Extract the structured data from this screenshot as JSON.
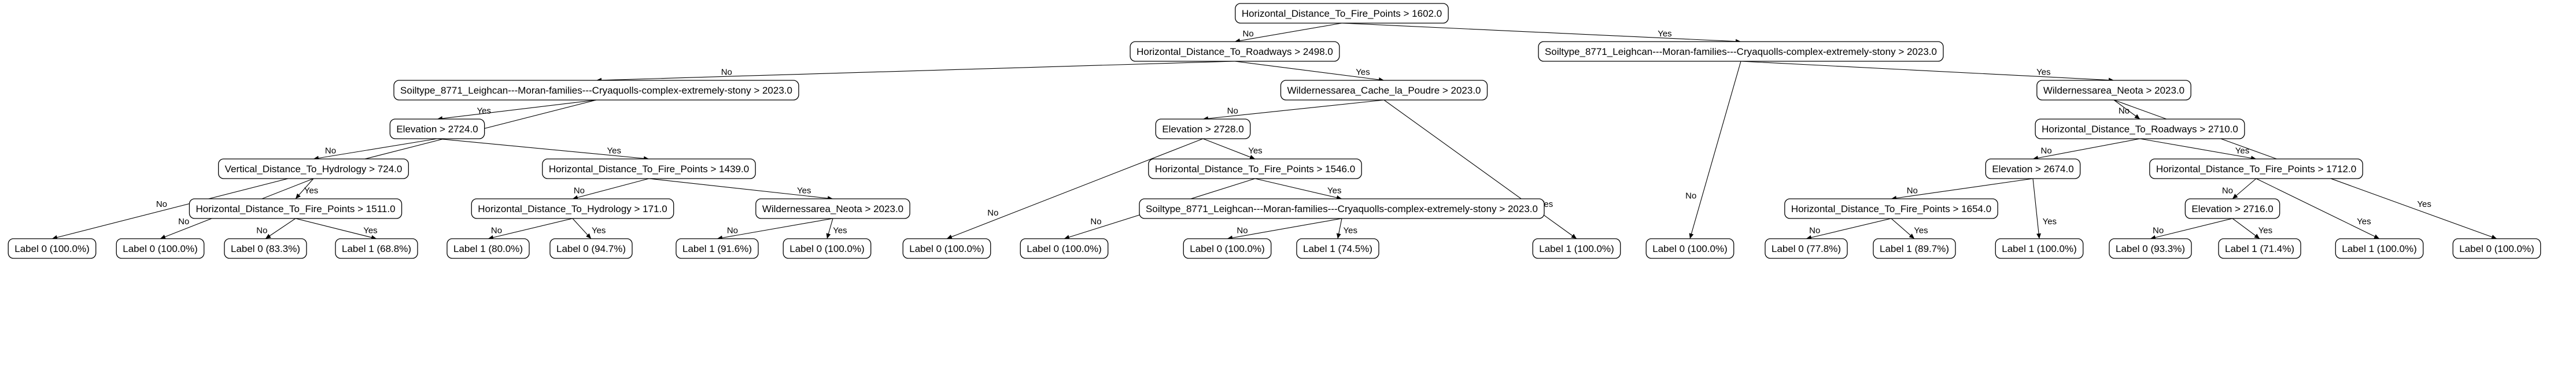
{
  "diagram": {
    "type": "decision-tree",
    "edge_labels": {
      "yes": "Yes",
      "no": "No"
    },
    "nodes": [
      {
        "id": "n0",
        "label": "Horizontal_Distance_To_Fire_Points > 1602.0"
      },
      {
        "id": "n1",
        "label": "Horizontal_Distance_To_Roadways > 2498.0"
      },
      {
        "id": "n2",
        "label": "Soiltype_8771_Leighcan---Moran-families---Cryaquolls-complex-extremely-stony > 2023.0"
      },
      {
        "id": "n3",
        "label": "Soiltype_8771_Leighcan---Moran-families---Cryaquolls-complex-extremely-stony > 2023.0"
      },
      {
        "id": "n4",
        "label": "Wildernessarea_Cache_la_Poudre > 2023.0"
      },
      {
        "id": "n5",
        "label": "Wildernessarea_Neota > 2023.0"
      },
      {
        "id": "n6",
        "label": "Elevation > 2724.0"
      },
      {
        "id": "n7",
        "label": "Elevation > 2728.0"
      },
      {
        "id": "n8",
        "label": "Horizontal_Distance_To_Roadways > 2710.0"
      },
      {
        "id": "n9",
        "label": "Vertical_Distance_To_Hydrology > 724.0"
      },
      {
        "id": "n10",
        "label": "Horizontal_Distance_To_Fire_Points > 1439.0"
      },
      {
        "id": "n11",
        "label": "Horizontal_Distance_To_Fire_Points > 1546.0"
      },
      {
        "id": "n12",
        "label": "Elevation > 2674.0"
      },
      {
        "id": "n13",
        "label": "Horizontal_Distance_To_Fire_Points > 1712.0"
      },
      {
        "id": "n14",
        "label": "Horizontal_Distance_To_Fire_Points > 1511.0"
      },
      {
        "id": "n15",
        "label": "Horizontal_Distance_To_Hydrology > 171.0"
      },
      {
        "id": "n16",
        "label": "Wildernessarea_Neota > 2023.0"
      },
      {
        "id": "n17",
        "label": "Soiltype_8771_Leighcan---Moran-families---Cryaquolls-complex-extremely-stony > 2023.0"
      },
      {
        "id": "n18",
        "label": "Horizontal_Distance_To_Fire_Points > 1654.0"
      },
      {
        "id": "n19",
        "label": "Elevation > 2716.0"
      },
      {
        "id": "l0",
        "label": "Label 0 (100.0%)"
      },
      {
        "id": "l1",
        "label": "Label 0 (100.0%)"
      },
      {
        "id": "l2",
        "label": "Label 0 (83.3%)"
      },
      {
        "id": "l3",
        "label": "Label 1 (68.8%)"
      },
      {
        "id": "l4",
        "label": "Label 1 (80.0%)"
      },
      {
        "id": "l5",
        "label": "Label 0 (94.7%)"
      },
      {
        "id": "l6",
        "label": "Label 1 (91.6%)"
      },
      {
        "id": "l7",
        "label": "Label 0 (100.0%)"
      },
      {
        "id": "l8",
        "label": "Label 0 (100.0%)"
      },
      {
        "id": "l9",
        "label": "Label 0 (100.0%)"
      },
      {
        "id": "l10",
        "label": "Label 0 (100.0%)"
      },
      {
        "id": "l11",
        "label": "Label 1 (74.5%)"
      },
      {
        "id": "l12",
        "label": "Label 1 (100.0%)"
      },
      {
        "id": "l13",
        "label": "Label 0 (100.0%)"
      },
      {
        "id": "l14",
        "label": "Label 0 (77.8%)"
      },
      {
        "id": "l15",
        "label": "Label 1 (89.7%)"
      },
      {
        "id": "l16",
        "label": "Label 1 (100.0%)"
      },
      {
        "id": "l17",
        "label": "Label 0 (93.3%)"
      },
      {
        "id": "l18",
        "label": "Label 1 (71.4%)"
      },
      {
        "id": "l19",
        "label": "Label 1 (100.0%)"
      },
      {
        "id": "l20",
        "label": "Label 0 (100.0%)"
      }
    ],
    "edges": [
      {
        "from": "n0",
        "to": "n1",
        "branch": "no"
      },
      {
        "from": "n0",
        "to": "n3",
        "branch": "yes"
      },
      {
        "from": "n1",
        "to": "n2",
        "branch": "no"
      },
      {
        "from": "n1",
        "to": "n4",
        "branch": "yes"
      },
      {
        "from": "n2",
        "to": "l0",
        "branch": "no"
      },
      {
        "from": "n2",
        "to": "n6",
        "branch": "yes"
      },
      {
        "from": "n6",
        "to": "n9",
        "branch": "no"
      },
      {
        "from": "n6",
        "to": "n10",
        "branch": "yes"
      },
      {
        "from": "n9",
        "to": "l1",
        "branch": "no"
      },
      {
        "from": "n9",
        "to": "n14",
        "branch": "yes"
      },
      {
        "from": "n14",
        "to": "l2",
        "branch": "no"
      },
      {
        "from": "n14",
        "to": "l3",
        "branch": "yes"
      },
      {
        "from": "n10",
        "to": "n15",
        "branch": "no"
      },
      {
        "from": "n10",
        "to": "n16",
        "branch": "yes"
      },
      {
        "from": "n15",
        "to": "l4",
        "branch": "no"
      },
      {
        "from": "n15",
        "to": "l5",
        "branch": "yes"
      },
      {
        "from": "n16",
        "to": "l6",
        "branch": "no"
      },
      {
        "from": "n16",
        "to": "l7",
        "branch": "yes"
      },
      {
        "from": "n4",
        "to": "n7",
        "branch": "no"
      },
      {
        "from": "n4",
        "to": "l12",
        "branch": "yes"
      },
      {
        "from": "n7",
        "to": "l8",
        "branch": "no"
      },
      {
        "from": "n7",
        "to": "n11",
        "branch": "yes"
      },
      {
        "from": "n11",
        "to": "l9",
        "branch": "no"
      },
      {
        "from": "n11",
        "to": "n17",
        "branch": "yes"
      },
      {
        "from": "n17",
        "to": "l10",
        "branch": "no"
      },
      {
        "from": "n17",
        "to": "l11",
        "branch": "yes"
      },
      {
        "from": "n3",
        "to": "l13",
        "branch": "no"
      },
      {
        "from": "n3",
        "to": "n5",
        "branch": "yes"
      },
      {
        "from": "n5",
        "to": "n8",
        "branch": "no"
      },
      {
        "from": "n5",
        "to": "l20",
        "branch": "yes"
      },
      {
        "from": "n8",
        "to": "n12",
        "branch": "no"
      },
      {
        "from": "n8",
        "to": "n13",
        "branch": "yes"
      },
      {
        "from": "n12",
        "to": "n18",
        "branch": "no"
      },
      {
        "from": "n12",
        "to": "l16",
        "branch": "yes"
      },
      {
        "from": "n18",
        "to": "l14",
        "branch": "no"
      },
      {
        "from": "n18",
        "to": "l15",
        "branch": "yes"
      },
      {
        "from": "n13",
        "to": "n19",
        "branch": "no"
      },
      {
        "from": "n13",
        "to": "l19",
        "branch": "yes"
      },
      {
        "from": "n19",
        "to": "l17",
        "branch": "no"
      },
      {
        "from": "n19",
        "to": "l18",
        "branch": "yes"
      }
    ]
  }
}
